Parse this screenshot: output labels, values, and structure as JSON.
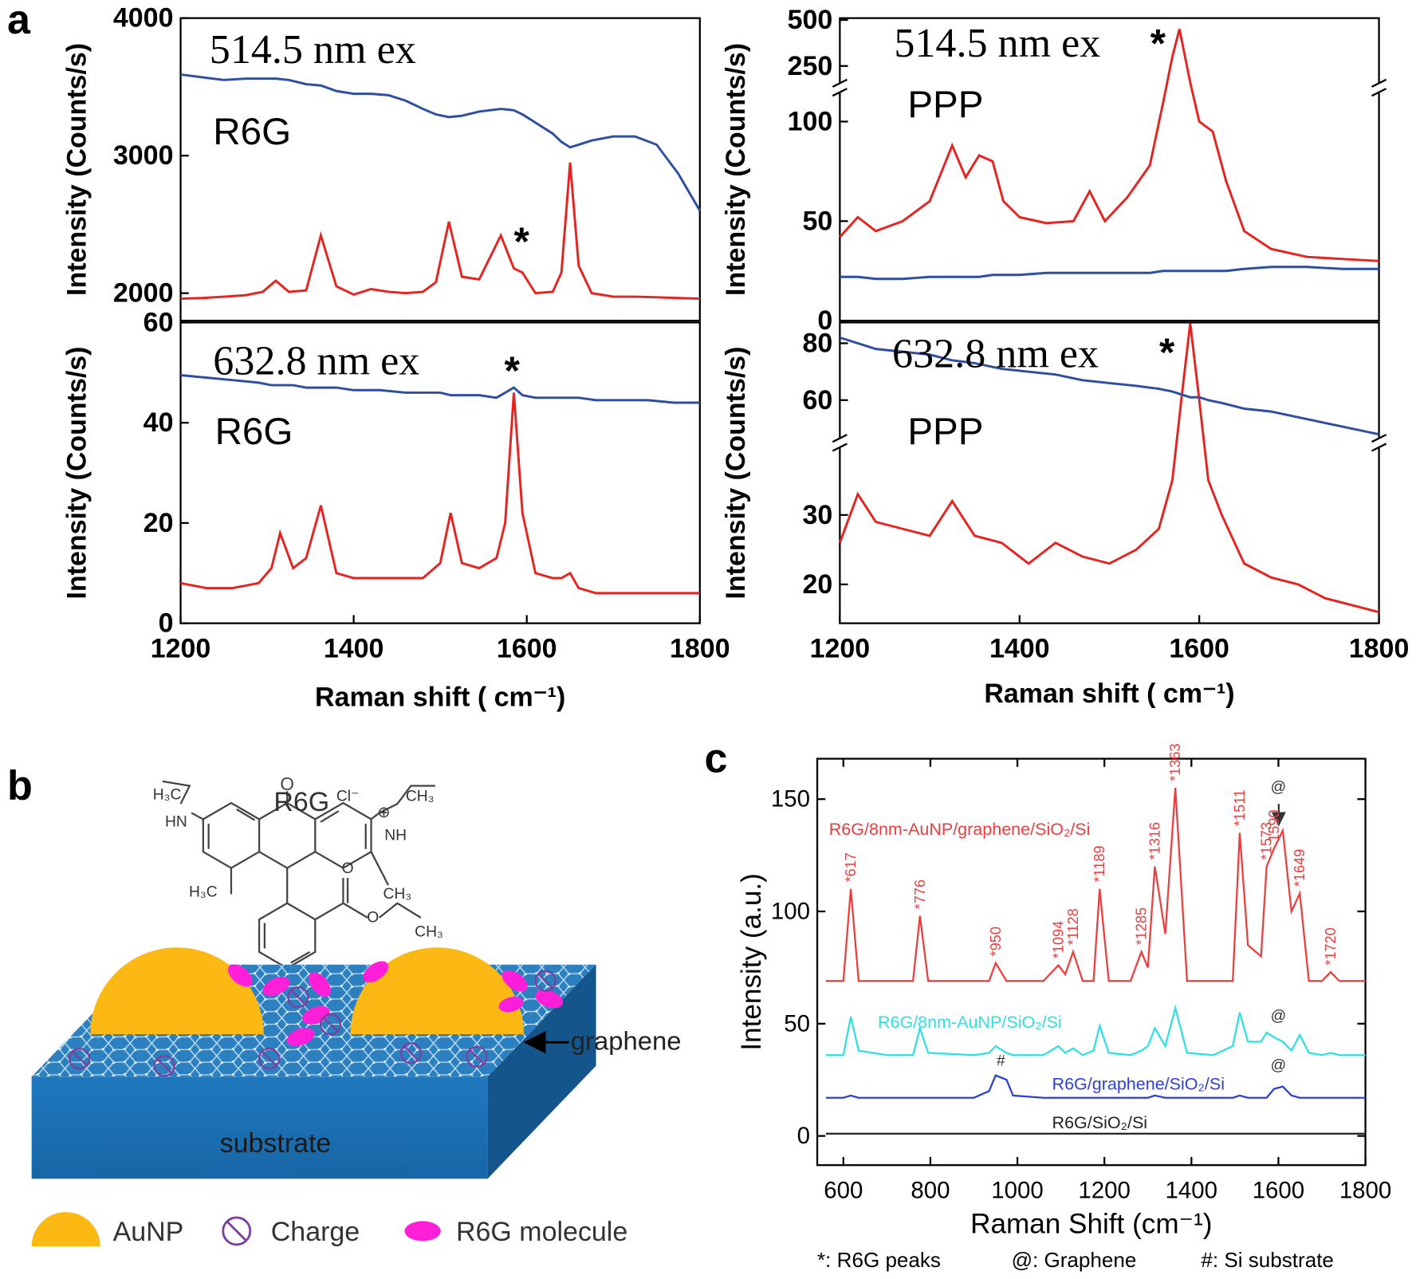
{
  "panel_labels": [
    "a",
    "b",
    "c"
  ],
  "chart_data": [
    {
      "type": "line",
      "title": "514.5 nm ex",
      "subtitle": "R6G",
      "ylabel": "Intensity (Counts/s)",
      "xlim": [
        1200,
        1800
      ],
      "ylim": [
        1800,
        4000
      ],
      "yticks": [
        2000,
        3000,
        4000
      ],
      "x": [
        1200,
        1225,
        1250,
        1275,
        1295,
        1310,
        1325,
        1345,
        1362,
        1380,
        1400,
        1420,
        1440,
        1460,
        1480,
        1495,
        1510,
        1525,
        1545,
        1570,
        1585,
        1595,
        1610,
        1630,
        1640,
        1650,
        1660,
        1675,
        1700,
        1725,
        1750,
        1775,
        1800
      ],
      "series": [
        {
          "color": "#e8231f",
          "values": [
            1960,
            1965,
            1975,
            1985,
            2010,
            2090,
            2010,
            2020,
            2420,
            2050,
            1990,
            2030,
            2010,
            2000,
            2010,
            2080,
            2520,
            2120,
            2100,
            2420,
            2180,
            2150,
            2000,
            2010,
            2150,
            2950,
            2200,
            2000,
            1975,
            1975,
            1970,
            1965,
            1960
          ]
        },
        {
          "color": "#2e4ea3",
          "values": [
            3590,
            3570,
            3550,
            3560,
            3560,
            3560,
            3550,
            3520,
            3510,
            3470,
            3450,
            3450,
            3440,
            3400,
            3340,
            3300,
            3280,
            3290,
            3320,
            3340,
            3330,
            3300,
            3240,
            3160,
            3100,
            3060,
            3080,
            3110,
            3140,
            3140,
            3080,
            2870,
            2600
          ]
        }
      ],
      "annotations": [
        {
          "text": "*",
          "x": 1594,
          "y": 2374
        }
      ]
    },
    {
      "type": "line",
      "title": "632.8 nm ex",
      "subtitle": "R6G",
      "ylabel": "Intensity (Counts/s)",
      "xlabel": "Raman shift ( cm⁻¹)",
      "xlim": [
        1200,
        1800
      ],
      "ylim": [
        0,
        60
      ],
      "xticks": [
        1200,
        1400,
        1600,
        1800
      ],
      "yticks": [
        0,
        20,
        40,
        60
      ],
      "x": [
        1200,
        1230,
        1260,
        1290,
        1305,
        1315,
        1330,
        1345,
        1362,
        1380,
        1400,
        1430,
        1460,
        1480,
        1500,
        1512,
        1525,
        1545,
        1565,
        1575,
        1585,
        1595,
        1610,
        1630,
        1640,
        1650,
        1660,
        1680,
        1710,
        1740,
        1770,
        1800
      ],
      "series": [
        {
          "color": "#e8231f",
          "values": [
            8,
            7,
            7,
            8,
            11,
            18,
            11,
            13,
            23.5,
            10,
            9,
            9,
            9,
            9,
            12,
            22,
            12,
            11,
            13,
            20,
            46,
            22,
            10,
            9,
            9,
            10,
            7,
            6,
            6,
            6,
            6,
            6
          ]
        },
        {
          "color": "#2e4ea3",
          "values": [
            49.5,
            49,
            48.5,
            48,
            47.5,
            47.5,
            47.5,
            47,
            47,
            47,
            46.5,
            46.5,
            46,
            46,
            46,
            45.5,
            45.5,
            45.5,
            45,
            46,
            47,
            45.5,
            45,
            45,
            45,
            45,
            45,
            44.5,
            44.5,
            44.5,
            44,
            44
          ]
        }
      ],
      "annotations": [
        {
          "text": "*",
          "x": 1583,
          "y": 50.4
        }
      ]
    },
    {
      "type": "line",
      "title": "514.5 nm ex",
      "subtitle": "PPP",
      "ylabel": "Intensity (Counts/s)",
      "broken_axis": true,
      "xlim": [
        1200,
        1800
      ],
      "ylim": [
        [
          0,
          117
        ],
        [
          132,
          510
        ]
      ],
      "yticks": [
        0,
        50,
        100,
        250,
        500
      ],
      "x": [
        1200,
        1220,
        1240,
        1270,
        1300,
        1325,
        1340,
        1355,
        1370,
        1382,
        1400,
        1430,
        1460,
        1478,
        1495,
        1520,
        1545,
        1560,
        1570,
        1578,
        1590,
        1600,
        1615,
        1630,
        1650,
        1680,
        1720,
        1760,
        1800
      ],
      "series": [
        {
          "color": "#e8231f",
          "values": [
            42,
            52,
            45,
            50,
            60,
            88,
            72,
            83,
            80,
            60,
            52,
            49,
            50,
            65,
            50,
            62,
            78,
            110,
            300,
            450,
            160,
            100,
            95,
            70,
            45,
            36,
            32,
            31,
            30
          ]
        },
        {
          "color": "#2e4ea3",
          "values": [
            22,
            22,
            21,
            21,
            22,
            22,
            22,
            22,
            23,
            23,
            23,
            24,
            24,
            24,
            24,
            24,
            24,
            25,
            25,
            25,
            25,
            25,
            25,
            25,
            26,
            27,
            27,
            26,
            26
          ]
        }
      ],
      "annotations": [
        {
          "text": "*",
          "x": 1554,
          "y": 372
        }
      ]
    },
    {
      "type": "line",
      "title": "632.8 nm ex",
      "subtitle": "PPP",
      "ylabel": "Intensity (Counts/s)",
      "xlabel": "Raman shift ( cm⁻¹)",
      "broken_axis": true,
      "xlim": [
        1200,
        1800
      ],
      "ylim": [
        [
          14.4,
          40.4
        ],
        [
          45,
          87.3
        ]
      ],
      "xticks": [
        1200,
        1400,
        1600,
        1800
      ],
      "yticks": [
        20,
        30,
        60,
        80
      ],
      "x": [
        1200,
        1220,
        1240,
        1270,
        1300,
        1325,
        1350,
        1380,
        1410,
        1440,
        1470,
        1500,
        1530,
        1555,
        1570,
        1580,
        1590,
        1600,
        1610,
        1625,
        1650,
        1680,
        1710,
        1740,
        1770,
        1800
      ],
      "series": [
        {
          "color": "#e8231f",
          "values": [
            26,
            33,
            29,
            28,
            27,
            32,
            27,
            26,
            23,
            26,
            24,
            23,
            25,
            28,
            35,
            60,
            87,
            60,
            35,
            30,
            23,
            21,
            20,
            18,
            17,
            16
          ]
        },
        {
          "color": "#2e4ea3",
          "values": [
            82,
            80,
            78,
            77,
            76,
            74,
            73,
            71,
            70,
            69,
            67,
            66,
            65,
            64,
            63,
            62,
            61,
            61,
            60,
            59,
            57,
            56,
            54,
            52,
            50,
            48
          ]
        }
      ],
      "annotations": [
        {
          "text": "*",
          "x": 1564,
          "y": 76.8
        }
      ]
    },
    {
      "type": "line",
      "ylabel": "Intensity (a.u.)",
      "xlabel": "Raman Shift (cm⁻¹)",
      "xlim": [
        540,
        1800
      ],
      "ylim": [
        -13,
        168
      ],
      "xticks": [
        600,
        800,
        1000,
        1200,
        1400,
        1600,
        1800
      ],
      "yticks": [
        0,
        50,
        100,
        150
      ],
      "x": [
        560,
        600,
        617,
        635,
        700,
        760,
        776,
        795,
        900,
        935,
        950,
        975,
        990,
        1060,
        1094,
        1110,
        1128,
        1150,
        1175,
        1189,
        1210,
        1260,
        1285,
        1300,
        1316,
        1340,
        1363,
        1390,
        1450,
        1495,
        1511,
        1530,
        1560,
        1573,
        1590,
        1610,
        1630,
        1649,
        1670,
        1700,
        1720,
        1740,
        1800
      ],
      "series": [
        {
          "name": "R6G/8nm-AuNP/graphene/SiO₂/Si",
          "color": "#f03c3c",
          "values": [
            69,
            69,
            110,
            69,
            69,
            69,
            98,
            69,
            69,
            69,
            77,
            69,
            69,
            69,
            76,
            72,
            82,
            69,
            69,
            110,
            69,
            69,
            82,
            75,
            120,
            90,
            155,
            69,
            69,
            69,
            135,
            85,
            80,
            120,
            128,
            136,
            100,
            108,
            69,
            69,
            73,
            69,
            69
          ]
        },
        {
          "name": "R6G/8nm-AuNP/SiO₂/Si",
          "color": "#2ee0e6",
          "values": [
            36,
            36,
            53,
            38,
            36,
            36,
            48,
            37,
            36,
            37,
            40,
            37,
            36,
            36,
            40,
            37,
            39,
            36,
            38,
            49,
            37,
            36,
            38,
            40,
            48,
            40,
            57,
            37,
            36,
            40,
            55,
            42,
            42,
            46,
            44,
            42,
            38,
            45,
            37,
            36,
            37,
            36,
            36
          ]
        },
        {
          "name": "R6G/graphene/SiO₂/Si",
          "color": "#2b3fe0",
          "values": [
            17,
            17,
            18,
            17,
            17,
            17,
            17,
            17,
            17,
            20,
            27,
            25,
            18,
            17,
            17,
            17,
            17,
            17,
            17,
            17,
            17,
            17,
            17,
            17,
            18,
            17,
            17,
            17,
            17,
            17,
            18,
            17,
            17,
            17,
            21,
            22,
            18,
            17,
            17,
            17,
            17,
            17,
            17
          ]
        },
        {
          "name": "R6G/SiO₂/Si",
          "color": "#222222",
          "values": [
            1,
            1,
            1,
            1,
            1,
            1,
            1,
            1,
            1,
            1,
            1,
            1,
            1,
            1,
            1,
            1,
            1,
            1,
            1,
            1,
            1,
            1,
            1,
            1,
            1,
            1,
            1,
            1,
            1,
            1,
            1,
            1,
            1,
            1,
            1,
            1,
            1,
            1,
            1,
            1,
            1,
            1,
            1
          ]
        }
      ],
      "annotations": [
        {
          "text": "*617",
          "x": 617,
          "y": 113,
          "color": "#f03c3c"
        },
        {
          "text": "*776",
          "x": 776,
          "y": 101,
          "color": "#f03c3c"
        },
        {
          "text": "*950",
          "x": 950,
          "y": 80,
          "color": "#f03c3c"
        },
        {
          "text": "*1094",
          "x": 1094,
          "y": 79,
          "color": "#f03c3c"
        },
        {
          "text": "*1128",
          "x": 1128,
          "y": 85,
          "color": "#f03c3c"
        },
        {
          "text": "*1189",
          "x": 1189,
          "y": 113,
          "color": "#f03c3c"
        },
        {
          "text": "*1285",
          "x": 1285,
          "y": 85,
          "color": "#f03c3c"
        },
        {
          "text": "*1316",
          "x": 1316,
          "y": 123,
          "color": "#f03c3c"
        },
        {
          "text": "*1363",
          "x": 1363,
          "y": 158,
          "color": "#f03c3c"
        },
        {
          "text": "*1511",
          "x": 1511,
          "y": 138,
          "color": "#f03c3c"
        },
        {
          "text": "*1573",
          "x": 1573,
          "y": 123,
          "color": "#f03c3c"
        },
        {
          "text": "1590",
          "x": 1590,
          "y": 131,
          "color": "#f03c3c"
        },
        {
          "text": "*1649",
          "x": 1649,
          "y": 111,
          "color": "#f03c3c"
        },
        {
          "text": "*1720",
          "x": 1720,
          "y": 76,
          "color": "#f03c3c"
        },
        {
          "text": "@",
          "x": 1600,
          "y": 152,
          "color": "#333333"
        },
        {
          "text": "@",
          "x": 1600,
          "y": 50,
          "color": "#333333"
        },
        {
          "text": "@",
          "x": 1600,
          "y": 28,
          "color": "#333333"
        },
        {
          "text": "#",
          "x": 962,
          "y": 30,
          "color": "#333333"
        }
      ],
      "footnotes": [
        "*: R6G peaks",
        "@: Graphene",
        "#: Si substrate"
      ]
    }
  ],
  "diagram": {
    "title": "R6G",
    "chem_labels": [
      "H₃C",
      "HN",
      "Cl⁻",
      "CH₃",
      "⊕",
      "NH",
      "H₃C",
      "CH₃",
      "O",
      "O",
      "CH₃"
    ],
    "layer_label": "graphene",
    "substrate_label": "substrate",
    "legend": [
      "AuNP",
      "Charge",
      "R6G molecule"
    ]
  }
}
